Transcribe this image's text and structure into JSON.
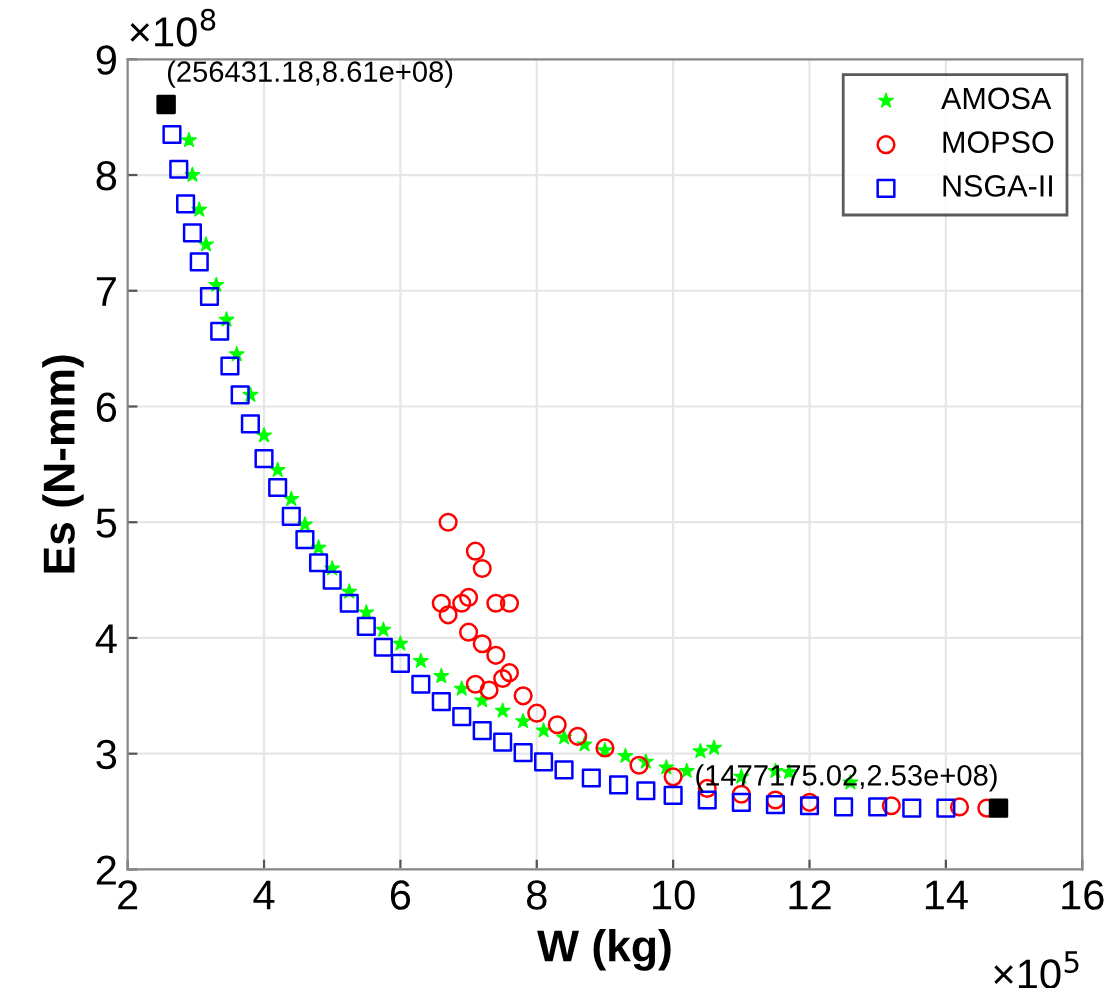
{
  "chart_data": {
    "type": "scatter",
    "xlabel": "W (kg)",
    "ylabel": "Es (N-mm)",
    "xlim": [
      2,
      16
    ],
    "xticks": [
      2,
      4,
      6,
      8,
      10,
      12,
      14,
      16
    ],
    "ylim": [
      2,
      9
    ],
    "yticks": [
      2,
      3,
      4,
      5,
      6,
      7,
      8,
      9
    ],
    "grid": true,
    "legend": "top right",
    "annotations": [
      "×10$^{8}$",
      "×10$^{5}$",
      {
        "text": "(256431.18,8.61e+08)",
        "x": 2.5643118,
        "y": 8.61
      },
      {
        "text": "(1477175.02,2.53e+08)",
        "x": 14.7717502,
        "y": 2.53
      }
    ],
    "series": [
      {
        "name": "AMOSA",
        "color": "#00ff00",
        "marker": "star",
        "x": [
          2.9,
          2.95,
          3.05,
          3.15,
          3.3,
          3.45,
          3.6,
          3.8,
          4.0,
          4.2,
          4.4,
          4.6,
          4.8,
          5.0,
          5.25,
          5.5,
          5.75,
          6.0,
          6.3,
          6.6,
          6.9,
          7.2,
          7.5,
          7.8,
          8.1,
          8.4,
          8.7,
          9.0,
          9.3,
          9.6,
          9.9,
          10.2,
          10.4,
          10.6,
          11.0,
          11.5,
          11.7,
          12.6
        ],
        "values": [
          8.3,
          8.0,
          7.7,
          7.4,
          7.05,
          6.75,
          6.45,
          6.1,
          5.75,
          5.45,
          5.2,
          4.98,
          4.78,
          4.6,
          4.4,
          4.22,
          4.07,
          3.95,
          3.8,
          3.67,
          3.56,
          3.46,
          3.37,
          3.28,
          3.2,
          3.14,
          3.08,
          3.03,
          2.98,
          2.93,
          2.88,
          2.85,
          3.02,
          3.05,
          2.8,
          2.85,
          2.84,
          2.75
        ]
      },
      {
        "name": "MOPSO",
        "color": "#ff0000",
        "marker": "circle",
        "x": [
          6.7,
          7.1,
          7.2,
          7.0,
          6.6,
          6.7,
          6.9,
          7.0,
          7.4,
          7.6,
          7.2,
          7.4,
          7.6,
          7.1,
          7.3,
          7.5,
          7.8,
          8.0,
          8.3,
          8.6,
          9.0,
          9.5,
          10.0,
          10.5,
          11.0,
          11.5,
          12.0,
          13.2,
          14.2,
          14.6
        ],
        "values": [
          5.0,
          4.75,
          4.6,
          4.35,
          4.3,
          4.2,
          4.3,
          4.05,
          4.3,
          4.3,
          3.95,
          3.85,
          3.7,
          3.6,
          3.55,
          3.65,
          3.5,
          3.35,
          3.25,
          3.15,
          3.05,
          2.9,
          2.8,
          2.7,
          2.65,
          2.6,
          2.58,
          2.55,
          2.54,
          2.53
        ]
      },
      {
        "name": "NSGA-II",
        "color": "#0000ff",
        "marker": "square",
        "x": [
          2.65,
          2.75,
          2.85,
          2.95,
          3.05,
          3.2,
          3.35,
          3.5,
          3.65,
          3.8,
          4.0,
          4.2,
          4.4,
          4.6,
          4.8,
          5.0,
          5.25,
          5.5,
          5.75,
          6.0,
          6.3,
          6.6,
          6.9,
          7.2,
          7.5,
          7.8,
          8.1,
          8.4,
          8.8,
          9.2,
          9.6,
          10.0,
          10.5,
          11.0,
          11.5,
          12.0,
          12.5,
          13.0,
          13.5,
          14.0
        ],
        "values": [
          8.35,
          8.05,
          7.75,
          7.5,
          7.25,
          6.95,
          6.65,
          6.35,
          6.1,
          5.85,
          5.55,
          5.3,
          5.05,
          4.85,
          4.65,
          4.5,
          4.3,
          4.1,
          3.92,
          3.78,
          3.6,
          3.45,
          3.32,
          3.2,
          3.1,
          3.01,
          2.93,
          2.86,
          2.79,
          2.73,
          2.68,
          2.64,
          2.6,
          2.58,
          2.56,
          2.55,
          2.54,
          2.54,
          2.53,
          2.53
        ]
      },
      {
        "color": "#000000",
        "marker": "square",
        "x": [
          2.5643118,
          14.7717502
        ],
        "values": [
          8.61,
          2.53
        ]
      }
    ]
  }
}
